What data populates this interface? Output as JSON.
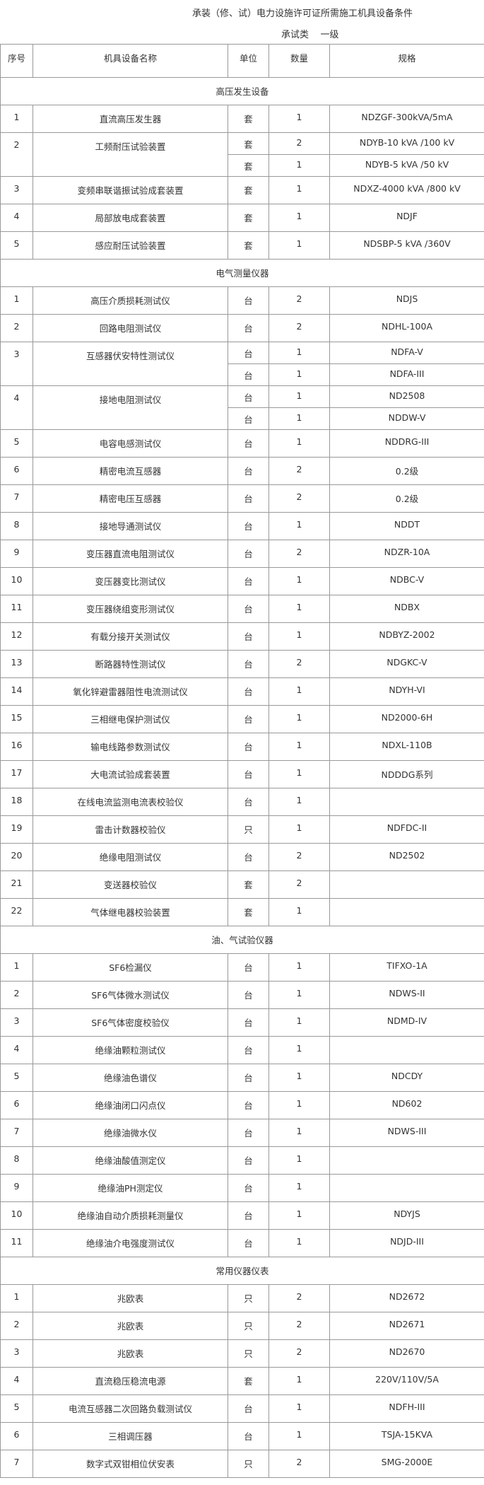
{
  "title": "承装（修、试）电力设施许可证所需施工机具设备条件",
  "subtitle": "承试类    一级",
  "columns": [
    "序号",
    "机具设备名称",
    "单位",
    "数量",
    "规格"
  ],
  "sections": [
    {
      "title": "高压发生设备",
      "items": [
        {
          "no": "1",
          "name": "直流高压发生器",
          "entries": [
            {
              "unit": "套",
              "qty": "1",
              "spec": "NDZGF-300kVA/5mA"
            }
          ]
        },
        {
          "no": "2",
          "name": "工频耐压试验装置",
          "entries": [
            {
              "unit": "套",
              "qty": "2",
              "spec": "NDYB-10 kVA /100 kV"
            },
            {
              "unit": "套",
              "qty": "1",
              "spec": "NDYB-5 kVA /50 kV"
            }
          ]
        },
        {
          "no": "3",
          "name": "变频串联谐振试验成套装置",
          "entries": [
            {
              "unit": "套",
              "qty": "1",
              "spec": "NDXZ-4000 kVA /800 kV"
            }
          ]
        },
        {
          "no": "4",
          "name": "局部放电成套装置",
          "entries": [
            {
              "unit": "套",
              "qty": "1",
              "spec": "NDJF"
            }
          ]
        },
        {
          "no": "5",
          "name": "感应耐压试验装置",
          "entries": [
            {
              "unit": "套",
              "qty": "1",
              "spec": "NDSBP-5 kVA /360V"
            }
          ]
        }
      ]
    },
    {
      "title": "电气测量仪器",
      "items": [
        {
          "no": "1",
          "name": "高压介质损耗测试仪",
          "entries": [
            {
              "unit": "台",
              "qty": "2",
              "spec": "NDJS"
            }
          ]
        },
        {
          "no": "2",
          "name": "回路电阻测试仪",
          "entries": [
            {
              "unit": "台",
              "qty": "2",
              "spec": "NDHL-100A"
            }
          ]
        },
        {
          "no": "3",
          "name": "互感器伏安特性测试仪",
          "entries": [
            {
              "unit": "台",
              "qty": "1",
              "spec": "NDFA-V"
            },
            {
              "unit": "台",
              "qty": "1",
              "spec": "NDFA-III"
            }
          ]
        },
        {
          "no": "4",
          "name": "接地电阻测试仪",
          "entries": [
            {
              "unit": "台",
              "qty": "1",
              "spec": "ND2508"
            },
            {
              "unit": "台",
              "qty": "1",
              "spec": "NDDW-V"
            }
          ]
        },
        {
          "no": "5",
          "name": "电容电感测试仪",
          "entries": [
            {
              "unit": "台",
              "qty": "1",
              "spec": "NDDRG-III"
            }
          ]
        },
        {
          "no": "6",
          "name": "精密电流互感器",
          "entries": [
            {
              "unit": "台",
              "qty": "2",
              "spec": "0.2级"
            }
          ]
        },
        {
          "no": "7",
          "name": "精密电压互感器",
          "entries": [
            {
              "unit": "台",
              "qty": "2",
              "spec": "0.2级"
            }
          ]
        },
        {
          "no": "8",
          "name": "接地导通测试仪",
          "entries": [
            {
              "unit": "台",
              "qty": "1",
              "spec": "NDDT"
            }
          ]
        },
        {
          "no": "9",
          "name": "变压器直流电阻测试仪",
          "entries": [
            {
              "unit": "台",
              "qty": "2",
              "spec": "NDZR-10A"
            }
          ]
        },
        {
          "no": "10",
          "name": "变压器变比测试仪",
          "entries": [
            {
              "unit": "台",
              "qty": "1",
              "spec": "NDBC-V"
            }
          ]
        },
        {
          "no": "11",
          "name": "变压器绕组变形测试仪",
          "entries": [
            {
              "unit": "台",
              "qty": "1",
              "spec": "NDBX"
            }
          ]
        },
        {
          "no": "12",
          "name": "有载分接开关测试仪",
          "entries": [
            {
              "unit": "台",
              "qty": "1",
              "spec": "NDBYZ-2002"
            }
          ]
        },
        {
          "no": "13",
          "name": "断路器特性测试仪",
          "entries": [
            {
              "unit": "台",
              "qty": "2",
              "spec": "NDGKC-V"
            }
          ]
        },
        {
          "no": "14",
          "name": "氧化锌避雷器阻性电流测试仪",
          "entries": [
            {
              "unit": "台",
              "qty": "1",
              "spec": "NDYH-VI"
            }
          ]
        },
        {
          "no": "15",
          "name": "三相继电保护测试仪",
          "entries": [
            {
              "unit": "台",
              "qty": "1",
              "spec": "ND2000-6H"
            }
          ]
        },
        {
          "no": "16",
          "name": "输电线路参数测试仪",
          "entries": [
            {
              "unit": "台",
              "qty": "1",
              "spec": "NDXL-110B"
            }
          ]
        },
        {
          "no": "17",
          "name": "大电流试验成套装置",
          "entries": [
            {
              "unit": "台",
              "qty": "1",
              "spec": "NDDDG系列"
            }
          ]
        },
        {
          "no": "18",
          "name": "在线电流监测电流表校验仪",
          "entries": [
            {
              "unit": "台",
              "qty": "1",
              "spec": ""
            }
          ]
        },
        {
          "no": "19",
          "name": "雷击计数器校验仪",
          "entries": [
            {
              "unit": "只",
              "qty": "1",
              "spec": "NDFDC-II"
            }
          ]
        },
        {
          "no": "20",
          "name": "绝缘电阻测试仪",
          "entries": [
            {
              "unit": "台",
              "qty": "2",
              "spec": "ND2502"
            }
          ]
        },
        {
          "no": "21",
          "name": "变送器校验仪",
          "entries": [
            {
              "unit": "套",
              "qty": "2",
              "spec": ""
            }
          ]
        },
        {
          "no": "22",
          "name": "气体继电器校验装置",
          "entries": [
            {
              "unit": "套",
              "qty": "1",
              "spec": ""
            }
          ]
        }
      ]
    },
    {
      "title": "油、气试验仪器",
      "items": [
        {
          "no": "1",
          "name": "SF6检漏仪",
          "entries": [
            {
              "unit": "台",
              "qty": "1",
              "spec": "TIFXO-1A"
            }
          ]
        },
        {
          "no": "2",
          "name": "SF6气体微水测试仪",
          "entries": [
            {
              "unit": "台",
              "qty": "1",
              "spec": "NDWS-II"
            }
          ]
        },
        {
          "no": "3",
          "name": "SF6气体密度校验仪",
          "entries": [
            {
              "unit": "台",
              "qty": "1",
              "spec": "NDMD-IV"
            }
          ]
        },
        {
          "no": "4",
          "name": "绝缘油颗粒测试仪",
          "entries": [
            {
              "unit": "台",
              "qty": "1",
              "spec": ""
            }
          ]
        },
        {
          "no": "5",
          "name": "绝缘油色谱仪",
          "entries": [
            {
              "unit": "台",
              "qty": "1",
              "spec": "NDCDY"
            }
          ]
        },
        {
          "no": "6",
          "name": "绝缘油闭口闪点仪",
          "entries": [
            {
              "unit": "台",
              "qty": "1",
              "spec": "ND602"
            }
          ]
        },
        {
          "no": "7",
          "name": "绝缘油微水仪",
          "entries": [
            {
              "unit": "台",
              "qty": "1",
              "spec": "NDWS-III"
            }
          ]
        },
        {
          "no": "8",
          "name": "绝缘油酸值测定仪",
          "entries": [
            {
              "unit": "台",
              "qty": "1",
              "spec": ""
            }
          ]
        },
        {
          "no": "9",
          "name": "绝缘油PH测定仪",
          "entries": [
            {
              "unit": "台",
              "qty": "1",
              "spec": ""
            }
          ]
        },
        {
          "no": "10",
          "name": "绝缘油自动介质损耗测量仪",
          "entries": [
            {
              "unit": "台",
              "qty": "1",
              "spec": "NDYJS"
            }
          ]
        },
        {
          "no": "11",
          "name": "绝缘油介电强度测试仪",
          "entries": [
            {
              "unit": "台",
              "qty": "1",
              "spec": "NDJD-III"
            }
          ]
        }
      ]
    },
    {
      "title": "常用仪器仪表",
      "items": [
        {
          "no": "1",
          "name": "兆欧表",
          "entries": [
            {
              "unit": "只",
              "qty": "2",
              "spec": "ND2672"
            }
          ]
        },
        {
          "no": "2",
          "name": "兆欧表",
          "entries": [
            {
              "unit": "只",
              "qty": "2",
              "spec": "ND2671"
            }
          ]
        },
        {
          "no": "3",
          "name": "兆欧表",
          "entries": [
            {
              "unit": "只",
              "qty": "2",
              "spec": "ND2670"
            }
          ]
        },
        {
          "no": "4",
          "name": "直流稳压稳流电源",
          "entries": [
            {
              "unit": "套",
              "qty": "1",
              "spec": "220V/110V/5A"
            }
          ]
        },
        {
          "no": "5",
          "name": "电流互感器二次回路负载测试仪",
          "entries": [
            {
              "unit": "台",
              "qty": "1",
              "spec": "NDFH-III"
            }
          ]
        },
        {
          "no": "6",
          "name": "三相调压器",
          "entries": [
            {
              "unit": "台",
              "qty": "1",
              "spec": "TSJA-15KVA"
            }
          ]
        },
        {
          "no": "7",
          "name": "数字式双钳相位伏安表",
          "entries": [
            {
              "unit": "只",
              "qty": "2",
              "spec": "SMG-2000E"
            }
          ]
        }
      ]
    }
  ]
}
